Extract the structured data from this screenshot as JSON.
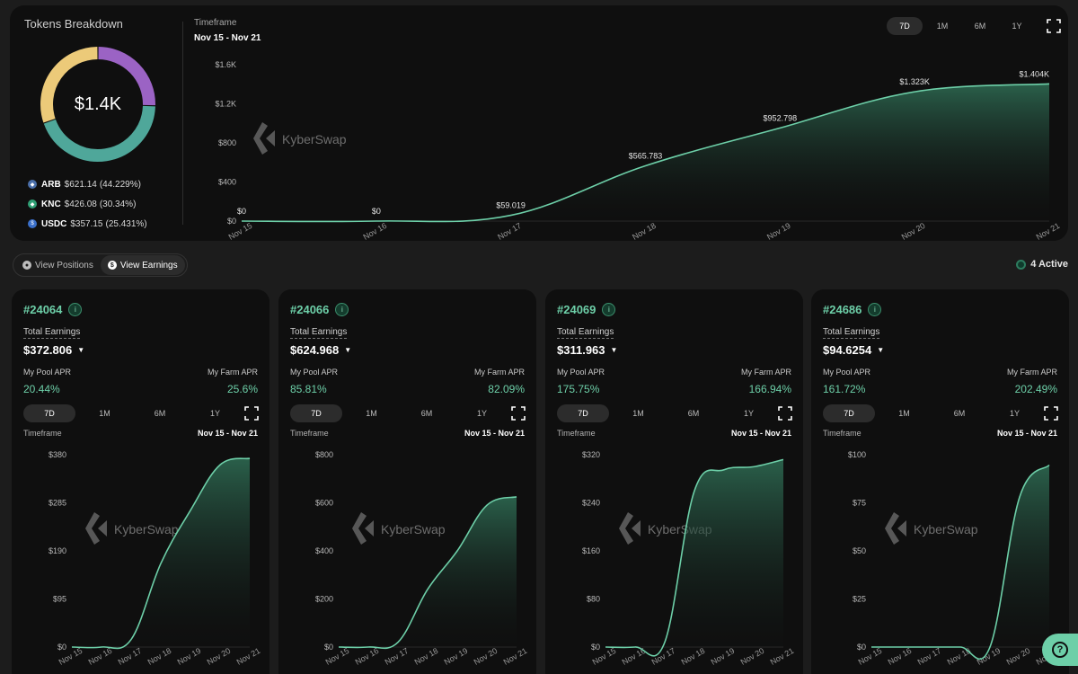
{
  "breakdown": {
    "title": "Tokens Breakdown",
    "total": "$1.4K",
    "tokens": [
      {
        "symbol": "ARB",
        "amount": "$621.14",
        "pct": "(44.229%)",
        "color": "#4a6ea8"
      },
      {
        "symbol": "KNC",
        "amount": "$426.08",
        "pct": "(30.34%)",
        "color": "#2f9f74"
      },
      {
        "symbol": "USDC",
        "amount": "$357.15",
        "pct": "(25.431%)",
        "color": "#3a6fc9"
      }
    ],
    "segments": [
      {
        "value": 25.431,
        "color": "#9b63c4"
      },
      {
        "value": 44.229,
        "color": "#4fa79a"
      },
      {
        "value": 30.34,
        "color": "#ecca79"
      }
    ]
  },
  "main": {
    "timeframe_label": "Timeframe",
    "timeframe_range": "Nov 15 - Nov 21",
    "tabs": [
      "7D",
      "1M",
      "6M",
      "1Y"
    ],
    "active_tab": "7D",
    "expand_icon": "expand-icon"
  },
  "watermark": "KyberSwap",
  "toggle": {
    "positions": "View Positions",
    "earnings": "View Earnings",
    "active": "earnings"
  },
  "active_count": "4 Active",
  "colors": {
    "accent": "#6dcfa8",
    "line": "#6dcfa8",
    "panel": "#0f0f0f",
    "background": "#1c1c1c"
  },
  "chart_data": [
    {
      "type": "area",
      "x": [
        "Nov 15",
        "Nov 16",
        "Nov 17",
        "Nov 18",
        "Nov 19",
        "Nov 20",
        "Nov 21"
      ],
      "values": [
        0,
        0,
        59.019,
        565.783,
        952.798,
        1323,
        1404
      ],
      "point_labels": [
        "$0",
        "$0",
        "$59.019",
        "$565.783",
        "$952.798",
        "$1.323K",
        "$1.404K"
      ],
      "yticks": [
        "$0",
        "$400",
        "$800",
        "$1.2K",
        "$1.6K"
      ],
      "ylim": [
        0,
        1600
      ]
    },
    {
      "type": "area",
      "x": [
        "Nov 15",
        "Nov 16",
        "Nov 17",
        "Nov 18",
        "Nov 19",
        "Nov 20",
        "Nov 21"
      ],
      "values": [
        0,
        0,
        15,
        165,
        270,
        360,
        372.806
      ],
      "yticks": [
        "$0",
        "$95",
        "$190",
        "$285",
        "$380"
      ],
      "ylim": [
        0,
        380
      ]
    },
    {
      "type": "area",
      "x": [
        "Nov 15",
        "Nov 16",
        "Nov 17",
        "Nov 18",
        "Nov 19",
        "Nov 20",
        "Nov 21"
      ],
      "values": [
        0,
        0,
        20,
        240,
        400,
        590,
        624.968
      ],
      "yticks": [
        "$0",
        "$200",
        "$400",
        "$600",
        "$800"
      ],
      "ylim": [
        0,
        800
      ]
    },
    {
      "type": "area",
      "x": [
        "Nov 15",
        "Nov 16",
        "Nov 17",
        "Nov 18",
        "Nov 19",
        "Nov 20",
        "Nov 21"
      ],
      "values": [
        0,
        0,
        8,
        260,
        295,
        300,
        311.963
      ],
      "yticks": [
        "$0",
        "$80",
        "$160",
        "$240",
        "$320"
      ],
      "ylim": [
        0,
        320
      ]
    },
    {
      "type": "area",
      "x": [
        "Nov 15",
        "Nov 16",
        "Nov 17",
        "Nov 18",
        "Nov 19",
        "Nov 20",
        "Nov 21"
      ],
      "values": [
        0,
        0,
        0,
        0,
        0,
        78,
        94.6254
      ],
      "yticks": [
        "$0",
        "$25",
        "$50",
        "$75",
        "$100"
      ],
      "ylim": [
        0,
        100
      ]
    }
  ],
  "cards": [
    {
      "id": "#24064",
      "earnings_label": "Total Earnings",
      "earnings": "$372.806",
      "pool_apr_label": "My Pool APR",
      "pool_apr": "20.44%",
      "farm_apr_label": "My Farm APR",
      "farm_apr": "25.6%",
      "tabs": [
        "7D",
        "1M",
        "6M",
        "1Y"
      ],
      "timeframe_label": "Timeframe",
      "timeframe_range": "Nov 15 - Nov 21"
    },
    {
      "id": "#24066",
      "earnings_label": "Total Earnings",
      "earnings": "$624.968",
      "pool_apr_label": "My Pool APR",
      "pool_apr": "85.81%",
      "farm_apr_label": "My Farm APR",
      "farm_apr": "82.09%",
      "tabs": [
        "7D",
        "1M",
        "6M",
        "1Y"
      ],
      "timeframe_label": "Timeframe",
      "timeframe_range": "Nov 15 - Nov 21"
    },
    {
      "id": "#24069",
      "earnings_label": "Total Earnings",
      "earnings": "$311.963",
      "pool_apr_label": "My Pool APR",
      "pool_apr": "175.75%",
      "farm_apr_label": "My Farm APR",
      "farm_apr": "166.94%",
      "tabs": [
        "7D",
        "1M",
        "6M",
        "1Y"
      ],
      "timeframe_label": "Timeframe",
      "timeframe_range": "Nov 15 - Nov 21"
    },
    {
      "id": "#24686",
      "earnings_label": "Total Earnings",
      "earnings": "$94.6254",
      "pool_apr_label": "My Pool APR",
      "pool_apr": "161.72%",
      "farm_apr_label": "My Farm APR",
      "farm_apr": "202.49%",
      "tabs": [
        "7D",
        "1M",
        "6M",
        "1Y"
      ],
      "timeframe_label": "Timeframe",
      "timeframe_range": "Nov 15 - Nov 21"
    }
  ]
}
